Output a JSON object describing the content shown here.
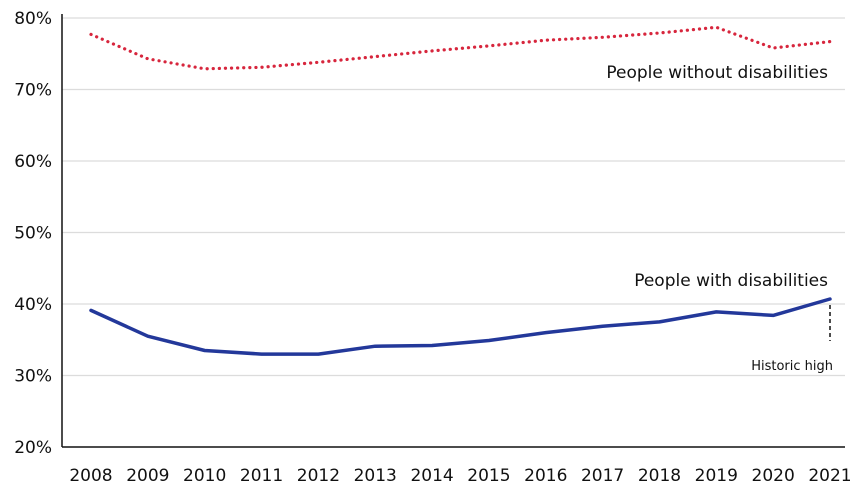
{
  "chart_data": {
    "type": "line",
    "title": "",
    "xlabel": "",
    "ylabel": "",
    "x": [
      2008,
      2009,
      2010,
      2011,
      2012,
      2013,
      2014,
      2015,
      2016,
      2017,
      2018,
      2019,
      2020,
      2021
    ],
    "xtick_labels": [
      "2008",
      "2009",
      "2010",
      "2011",
      "2012",
      "2013",
      "2014",
      "2015",
      "2016",
      "2017",
      "2018",
      "2019",
      "2020",
      "2021"
    ],
    "ylim": [
      20,
      80
    ],
    "yticks": [
      20,
      30,
      40,
      50,
      60,
      70,
      80
    ],
    "ytick_labels": [
      "20%",
      "30%",
      "40%",
      "50%",
      "60%",
      "70%",
      "80%"
    ],
    "grid": "horizontal",
    "series": [
      {
        "name": "People without disabilities",
        "style": "dotted",
        "color": "#d7263d",
        "values": [
          77.7,
          74.3,
          72.9,
          73.1,
          73.8,
          74.6,
          75.4,
          76.1,
          76.9,
          77.3,
          77.9,
          78.7,
          75.8,
          76.7
        ]
      },
      {
        "name": "People with disabilities",
        "style": "solid",
        "color": "#23389a",
        "values": [
          39.1,
          35.5,
          33.5,
          33.0,
          33.0,
          34.1,
          34.2,
          34.9,
          36.0,
          36.9,
          37.5,
          38.9,
          38.4,
          40.7
        ]
      }
    ],
    "annotations": [
      {
        "text": "Historic high",
        "series": 1,
        "x": 2021
      }
    ]
  }
}
